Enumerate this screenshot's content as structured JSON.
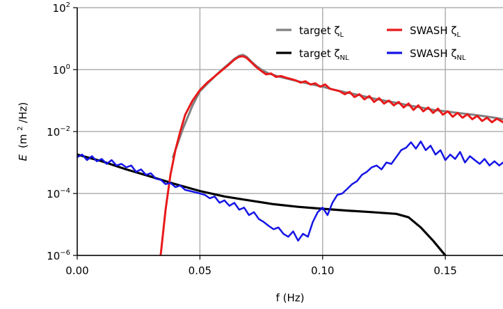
{
  "chart_data": {
    "type": "line",
    "xlabel": "f (Hz)",
    "ylabel_var": "E",
    "ylabel_open": "(m",
    "ylabel_sup": "2",
    "ylabel_close": "/Hz)",
    "x_axis": {
      "lim": [
        0.0,
        0.1735
      ],
      "ticks": [
        0.0,
        0.05,
        0.1,
        0.15
      ],
      "tick_labels": [
        "0.00",
        "0.05",
        "0.10",
        "0.15"
      ]
    },
    "y_axis": {
      "scale": "log",
      "lim": [
        1e-06,
        100
      ],
      "ticks": [
        1e-06,
        0.0001,
        0.01,
        1,
        100
      ],
      "tick_labels": [
        {
          "base": "10",
          "exp": "−6"
        },
        {
          "base": "10",
          "exp": "−4"
        },
        {
          "base": "10",
          "exp": "−2"
        },
        {
          "base": "10",
          "exp": "0"
        },
        {
          "base": "10",
          "exp": "2"
        }
      ]
    },
    "grid": true,
    "legend_position": "top-right",
    "series": [
      {
        "name_main": "target ζ",
        "name_sub": "L",
        "color": "#808080",
        "width": 3,
        "x": [
          0.039,
          0.043,
          0.047,
          0.05,
          0.053,
          0.056,
          0.059,
          0.062,
          0.064,
          0.066,
          0.0675,
          0.069,
          0.071,
          0.073,
          0.075,
          0.078,
          0.082,
          0.086,
          0.09,
          0.095,
          0.1,
          0.105,
          0.11,
          0.115,
          0.12,
          0.125,
          0.13,
          0.135,
          0.14,
          0.145,
          0.15,
          0.155,
          0.16,
          0.165,
          0.17,
          0.1735
        ],
        "y": [
          0.0015,
          0.012,
          0.07,
          0.2,
          0.35,
          0.6,
          1.0,
          1.6,
          2.2,
          2.8,
          3.0,
          2.6,
          1.8,
          1.3,
          1.0,
          0.75,
          0.6,
          0.5,
          0.42,
          0.34,
          0.28,
          0.22,
          0.18,
          0.15,
          0.12,
          0.1,
          0.085,
          0.07,
          0.06,
          0.05,
          0.045,
          0.04,
          0.036,
          0.032,
          0.028,
          0.025
        ]
      },
      {
        "name_main": "target ζ",
        "name_sub": "NL",
        "color": "#000000",
        "width": 3.2,
        "x": [
          0.0,
          0.01,
          0.02,
          0.03,
          0.04,
          0.05,
          0.06,
          0.07,
          0.08,
          0.09,
          0.1,
          0.11,
          0.12,
          0.13,
          0.135,
          0.14,
          0.145,
          0.15
        ],
        "y": [
          0.0018,
          0.0011,
          0.0006,
          0.00035,
          0.0002,
          0.00012,
          8e-05,
          6e-05,
          4.5e-05,
          3.7e-05,
          3.2e-05,
          2.8e-05,
          2.5e-05,
          2.2e-05,
          1.7e-05,
          8e-06,
          3e-06,
          1e-06
        ]
      },
      {
        "name_main": "SWASH ζ",
        "name_sub": "L",
        "color": "#e8191a",
        "width": 3,
        "x": [
          0.034,
          0.036,
          0.038,
          0.04,
          0.042,
          0.044,
          0.047,
          0.05,
          0.053,
          0.056,
          0.059,
          0.062,
          0.064,
          0.066,
          0.0675,
          0.069,
          0.071,
          0.073,
          0.075,
          0.077,
          0.079,
          0.081,
          0.083,
          0.085,
          0.087,
          0.089,
          0.091,
          0.093,
          0.095,
          0.097,
          0.099,
          0.101,
          0.103,
          0.105,
          0.107,
          0.109,
          0.111,
          0.113,
          0.115,
          0.117,
          0.119,
          0.121,
          0.123,
          0.125,
          0.127,
          0.129,
          0.131,
          0.133,
          0.135,
          0.137,
          0.139,
          0.141,
          0.143,
          0.145,
          0.147,
          0.149,
          0.151,
          0.153,
          0.155,
          0.157,
          0.159,
          0.161,
          0.163,
          0.165,
          0.167,
          0.169,
          0.171,
          0.1735
        ],
        "y": [
          1e-06,
          3e-05,
          0.0004,
          0.0025,
          0.01,
          0.035,
          0.1,
          0.22,
          0.38,
          0.6,
          0.95,
          1.5,
          2.1,
          2.6,
          2.7,
          2.4,
          1.7,
          1.2,
          0.9,
          0.7,
          0.75,
          0.58,
          0.62,
          0.55,
          0.5,
          0.45,
          0.38,
          0.42,
          0.33,
          0.36,
          0.28,
          0.33,
          0.24,
          0.22,
          0.2,
          0.16,
          0.19,
          0.13,
          0.16,
          0.11,
          0.14,
          0.09,
          0.12,
          0.08,
          0.1,
          0.07,
          0.09,
          0.06,
          0.08,
          0.05,
          0.07,
          0.045,
          0.06,
          0.04,
          0.055,
          0.035,
          0.045,
          0.03,
          0.04,
          0.028,
          0.036,
          0.025,
          0.032,
          0.022,
          0.028,
          0.02,
          0.026,
          0.02
        ]
      },
      {
        "name_main": "SWASH ζ",
        "name_sub": "NL",
        "color": "#1414e6",
        "width": 2.5,
        "x": [
          0.0,
          0.002,
          0.004,
          0.006,
          0.008,
          0.01,
          0.012,
          0.014,
          0.016,
          0.018,
          0.02,
          0.022,
          0.024,
          0.026,
          0.028,
          0.03,
          0.032,
          0.034,
          0.036,
          0.038,
          0.04,
          0.042,
          0.044,
          0.046,
          0.048,
          0.05,
          0.052,
          0.054,
          0.056,
          0.058,
          0.06,
          0.062,
          0.064,
          0.066,
          0.068,
          0.07,
          0.072,
          0.074,
          0.076,
          0.078,
          0.08,
          0.082,
          0.084,
          0.086,
          0.088,
          0.09,
          0.092,
          0.094,
          0.096,
          0.098,
          0.1,
          0.102,
          0.104,
          0.106,
          0.108,
          0.11,
          0.112,
          0.114,
          0.116,
          0.118,
          0.12,
          0.122,
          0.124,
          0.126,
          0.128,
          0.13,
          0.132,
          0.134,
          0.136,
          0.138,
          0.14,
          0.142,
          0.144,
          0.146,
          0.148,
          0.15,
          0.152,
          0.154,
          0.156,
          0.158,
          0.16,
          0.162,
          0.164,
          0.166,
          0.168,
          0.17,
          0.172,
          0.1735
        ],
        "y": [
          0.0015,
          0.0018,
          0.0012,
          0.0016,
          0.0011,
          0.0013,
          0.0009,
          0.0012,
          0.0008,
          0.0009,
          0.0007,
          0.0008,
          0.0005,
          0.0006,
          0.0004,
          0.00045,
          0.0003,
          0.00028,
          0.0002,
          0.00022,
          0.00016,
          0.00018,
          0.00013,
          0.00012,
          0.00011,
          0.0001,
          9e-05,
          7e-05,
          8e-05,
          5e-05,
          6e-05,
          4e-05,
          5e-05,
          3e-05,
          3.5e-05,
          2e-05,
          2.5e-05,
          1.5e-05,
          1.2e-05,
          9e-06,
          7e-06,
          8e-06,
          5e-06,
          4e-06,
          6e-06,
          3e-06,
          5e-06,
          4e-06,
          1.2e-05,
          2.5e-05,
          3.5e-05,
          2e-05,
          5e-05,
          9e-05,
          0.0001,
          0.00014,
          0.0002,
          0.00025,
          0.0004,
          0.0005,
          0.0007,
          0.0008,
          0.0006,
          0.001,
          0.0009,
          0.0015,
          0.0025,
          0.003,
          0.0045,
          0.0028,
          0.0048,
          0.0025,
          0.0035,
          0.0018,
          0.0025,
          0.0012,
          0.0018,
          0.0013,
          0.0022,
          0.001,
          0.0016,
          0.0012,
          0.0009,
          0.0013,
          0.0008,
          0.0011,
          0.0008,
          0.001
        ]
      }
    ]
  }
}
